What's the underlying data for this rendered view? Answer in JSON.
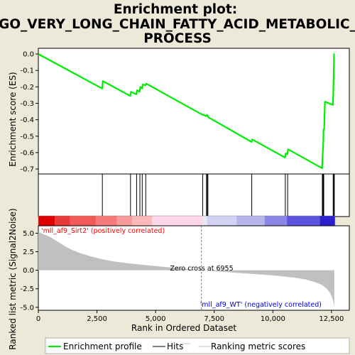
{
  "chart_data": {
    "type": "line",
    "title_lines": [
      "Enrichment plot:",
      "GO_VERY_LONG_CHAIN_FATTY_ACID_METABOLIC_",
      "PROCESS"
    ],
    "colors": {
      "enrichment": "#00ee00",
      "hits": "#000000",
      "metric_fill": "#c0c0c0",
      "positive_label": "#ff0000",
      "negative_label": "#0000cc",
      "background": "#ece9d8",
      "panel": "#ffffff"
    },
    "x_axis": {
      "label": "Rank in Ordered Dataset",
      "range": [
        0,
        13260
      ],
      "ticks": [
        0,
        2500,
        5000,
        7500,
        10000,
        12500
      ],
      "tick_labels": [
        "0",
        "2,500",
        "5,000",
        "7,500",
        "10,000",
        "12,500"
      ]
    },
    "es_panel": {
      "ylabel": "Enrichment score (ES)",
      "ylim": [
        -0.73,
        0.035
      ],
      "ticks": [
        0.0,
        -0.1,
        -0.2,
        -0.3,
        -0.4,
        -0.5,
        -0.6,
        -0.7
      ],
      "tick_labels": [
        "0.0",
        "-0.1",
        "-0.2",
        "-0.3",
        "-0.4",
        "-0.5",
        "-0.6",
        "-0.7"
      ],
      "gridlines": false,
      "series": [
        {
          "x": [
            0,
            2720,
            2750,
            3920,
            3950,
            4180,
            4210,
            4320,
            4350,
            4420,
            4450,
            4570,
            4600,
            7000,
            7030,
            7160,
            7190,
            7220,
            7250,
            9090,
            9120,
            10520,
            10550,
            10620,
            10650,
            12100,
            12120,
            12150,
            12160,
            12180,
            12190,
            12220,
            12560,
            12590,
            12610,
            12625
          ],
          "y": [
            0.0,
            -0.21,
            -0.165,
            -0.255,
            -0.23,
            -0.245,
            -0.22,
            -0.23,
            -0.2,
            -0.21,
            -0.185,
            -0.19,
            -0.18,
            -0.37,
            -0.37,
            -0.378,
            -0.37,
            -0.375,
            -0.385,
            -0.535,
            -0.52,
            -0.63,
            -0.605,
            -0.61,
            -0.58,
            -0.695,
            -0.62,
            -0.54,
            -0.46,
            -0.46,
            -0.45,
            -0.29,
            -0.31,
            -0.16,
            0.0,
            0.0
          ]
        }
      ]
    },
    "hits": [
      2730,
      3930,
      4190,
      4330,
      4430,
      4580,
      7010,
      7170,
      7200,
      7230,
      9100,
      10530,
      10630,
      12110,
      12130,
      12150,
      12170,
      12570,
      12600,
      12620
    ],
    "heatmap_colors": [
      "#dd0000",
      "#e83838",
      "#f25a5a",
      "#f67a7a",
      "#f99a9a",
      "#fbb8b8",
      "#fdd6e8",
      "#eae8f8",
      "#d4d2f4",
      "#b8b4ee",
      "#8c86e6",
      "#5c54dc",
      "#2a20cc"
    ],
    "heatmap_breaks": [
      0,
      700,
      1350,
      2450,
      3350,
      4000,
      4850,
      7000,
      7200,
      8450,
      9650,
      10600,
      12000,
      12650
    ],
    "metric_panel": {
      "ylabel": "Ranked list metric (Signal2Noise)",
      "ylim": [
        -5.4,
        6.0
      ],
      "ticks": [
        5.0,
        2.5,
        0.0,
        -2.5,
        -5.0
      ],
      "tick_labels": [
        "5.0",
        "2.5",
        "0.0",
        "-2.5",
        "-5.0"
      ],
      "x": [
        0,
        200,
        500,
        800,
        1100,
        1400,
        1800,
        2200,
        2700,
        3200,
        3800,
        4500,
        5200,
        6000,
        6955,
        7800,
        8600,
        9400,
        10200,
        10900,
        11400,
        11800,
        12100,
        12300,
        12450,
        12550,
        12620
      ],
      "y": [
        5.2,
        4.9,
        4.5,
        3.9,
        3.3,
        2.8,
        2.3,
        1.9,
        1.5,
        1.2,
        0.95,
        0.72,
        0.5,
        0.28,
        0.0,
        -0.2,
        -0.38,
        -0.55,
        -0.75,
        -0.98,
        -1.25,
        -1.6,
        -2.0,
        -2.5,
        -3.1,
        -3.9,
        -4.9
      ],
      "zero_cross": 6955,
      "zero_cross_label": "Zero cross at 6955",
      "positive_label": "'mll_af9_Sirt2' (positively correlated)",
      "negative_label": "'mll_af9_WT' (negatively correlated)"
    },
    "legend": [
      {
        "key": "enrichment",
        "label": "Enrichment profile"
      },
      {
        "key": "hits",
        "label": "Hits"
      },
      {
        "key": "metric",
        "label": "Ranking metric scores"
      }
    ]
  }
}
